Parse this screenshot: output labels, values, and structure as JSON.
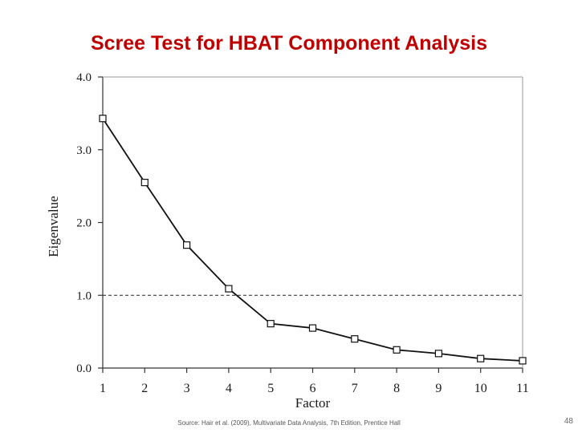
{
  "slide": {
    "title": "Scree Test for HBAT Component Analysis",
    "source_note": "Source: Hair et al. (2009), Multivariate Data Analysis, 7th Edition, Prentice Hall",
    "slide_number": "48"
  },
  "colors": {
    "title": "#c00000",
    "line": "#111111",
    "axis": "#333333"
  },
  "chart_data": {
    "type": "line",
    "title": "",
    "xlabel": "Factor",
    "ylabel": "Eigenvalue",
    "x": [
      1,
      2,
      3,
      4,
      5,
      6,
      7,
      8,
      9,
      10,
      11
    ],
    "x_tick_labels": [
      "1",
      "2",
      "3",
      "4",
      "5",
      "6",
      "7",
      "8",
      "9",
      "10",
      "11"
    ],
    "y_tick_values": [
      0,
      1,
      2,
      3,
      4
    ],
    "y_tick_labels": [
      "0.0",
      "1.0",
      "2.0",
      "3.0",
      "4.0"
    ],
    "xlim": [
      1,
      11
    ],
    "ylim": [
      0,
      4
    ],
    "series": [
      {
        "values": [
          3.43,
          2.55,
          1.69,
          1.09,
          0.61,
          0.55,
          0.4,
          0.25,
          0.2,
          0.13,
          0.1
        ],
        "marker": "open-square"
      }
    ],
    "reference_line": {
      "y": 1.0,
      "style": "dashed"
    },
    "grid": false,
    "legend": "none"
  }
}
